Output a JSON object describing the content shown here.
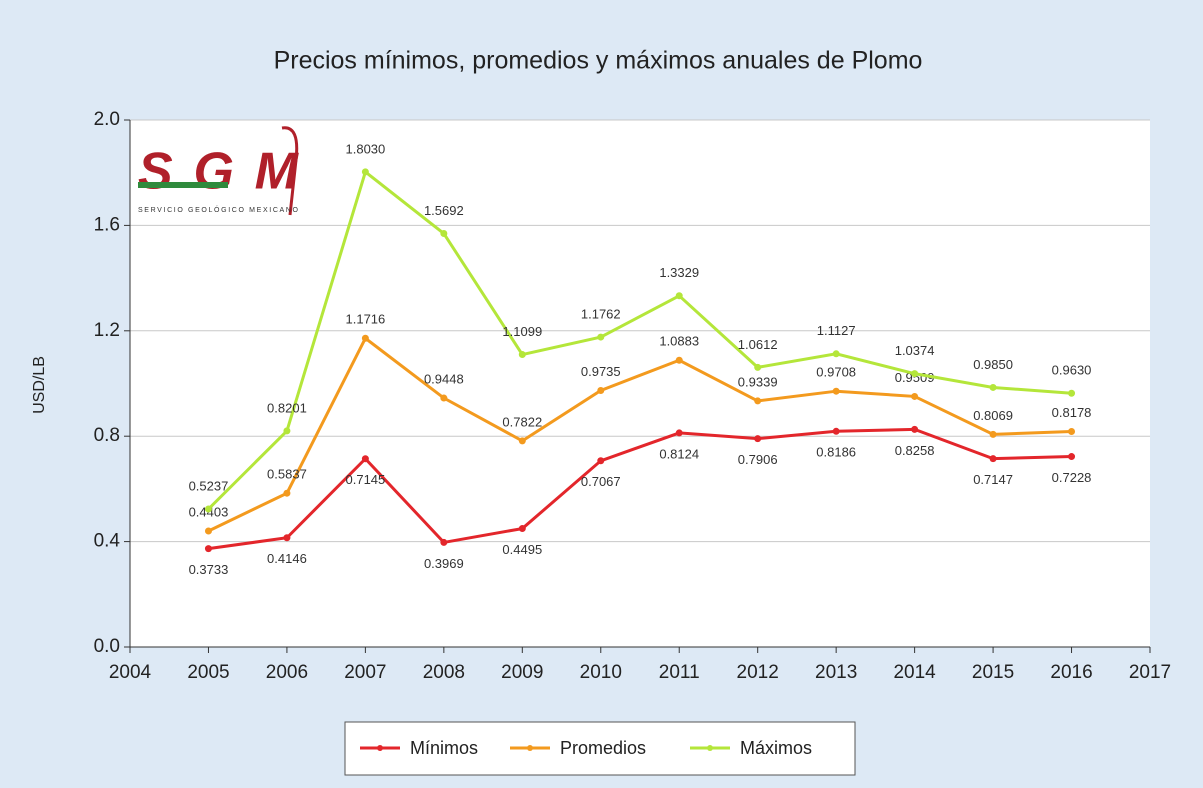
{
  "chart_data": {
    "type": "line",
    "title": "Precios mínimos, promedios y máximos anuales de Plomo",
    "y_label": "USD/LB",
    "logo": {
      "text": "SGM",
      "subtitle": "SERVICIO GEOLÓGICO MEXICANO"
    },
    "x": [
      2005,
      2006,
      2007,
      2008,
      2009,
      2010,
      2011,
      2012,
      2013,
      2014,
      2015,
      2016
    ],
    "xlim": [
      2004,
      2017
    ],
    "xticks": [
      2004,
      2005,
      2006,
      2007,
      2008,
      2009,
      2010,
      2011,
      2012,
      2013,
      2014,
      2015,
      2016,
      2017
    ],
    "ylim": [
      0,
      2
    ],
    "yticks": [
      {
        "value": 0,
        "label": "0.0"
      },
      {
        "value": 0.4,
        "label": "0.4"
      },
      {
        "value": 0.8,
        "label": "0.8"
      },
      {
        "value": 1.2,
        "label": "1.2"
      },
      {
        "value": 1.6,
        "label": "1.6"
      },
      {
        "value": 2,
        "label": "2.0"
      }
    ],
    "grid": true,
    "legend": "bottom",
    "series": [
      {
        "name": "Mínimos",
        "color": "#e3262b",
        "values": [
          0.3733,
          0.4146,
          0.7145,
          0.3969,
          0.4495,
          0.7067,
          0.8124,
          0.7906,
          0.8186,
          0.8258,
          0.7147,
          0.7228
        ],
        "value_labels": [
          "0.3733",
          "0.4146",
          "0.7145",
          "0.3969",
          "0.4495",
          "0.7067",
          "0.8124",
          "0.7906",
          "0.8186",
          "0.8258",
          "0.7147",
          "0.7228"
        ]
      },
      {
        "name": "Promedios",
        "color": "#f39a1e",
        "values": [
          0.4403,
          0.5837,
          1.1716,
          0.9448,
          0.7822,
          0.9735,
          1.0883,
          0.9339,
          0.9708,
          0.9509,
          0.8069,
          0.8178
        ],
        "value_labels": [
          "0.4403",
          "0.5837",
          "1.1716",
          "0.9448",
          "0.7822",
          "0.9735",
          "1.0883",
          "0.9339",
          "0.9708",
          "0.9509",
          "0.8069",
          "0.8178"
        ]
      },
      {
        "name": "Máximos",
        "color": "#b4e63a",
        "values": [
          0.5237,
          0.8201,
          1.803,
          1.5692,
          1.1099,
          1.1762,
          1.3329,
          1.0612,
          1.1127,
          1.0374,
          0.985,
          0.963
        ],
        "value_labels": [
          "0.5237",
          "0.8201",
          "1.8030",
          "1.5692",
          "1.1099",
          "1.1762",
          "1.3329",
          "1.0612",
          "1.1127",
          "1.0374",
          "0.9850",
          "0.9630"
        ]
      }
    ]
  }
}
